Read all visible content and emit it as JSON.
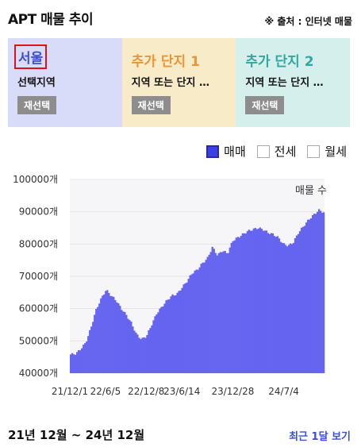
{
  "header": {
    "title": "APT 매물 추이",
    "source": "※ 출처 : 인터넷 매물"
  },
  "panels": [
    {
      "name": "서울",
      "subtitle": "선택지역",
      "button": "재선택"
    },
    {
      "name": "추가 단지 1",
      "subtitle": "지역 또는 단지 …",
      "button": "재선택"
    },
    {
      "name": "추가 단지 2",
      "subtitle": "지역 또는 단지 …",
      "button": "재선택"
    }
  ],
  "legend": [
    {
      "label": "매매",
      "checked": true
    },
    {
      "label": "전세",
      "checked": false
    },
    {
      "label": "월세",
      "checked": false
    }
  ],
  "colors": {
    "series": "#6565f0"
  },
  "chart_data": {
    "type": "area",
    "series_label": "매물 수",
    "ylim": [
      40000,
      100000
    ],
    "yticks": [
      "100000개",
      "90000개",
      "80000개",
      "70000개",
      "60000개",
      "50000개",
      "40000개"
    ],
    "xticks": [
      "21/12/1",
      "22/6/5",
      "22/12/8",
      "23/6/14",
      "23/12/28",
      "24/7/4"
    ],
    "x": [
      "21/12/1",
      "22/1/15",
      "22/2/1",
      "22/3/1",
      "22/4/1",
      "22/5/1",
      "22/5/20",
      "22/6/5",
      "22/6/20",
      "22/7/5",
      "22/8/1",
      "22/9/1",
      "22/10/1",
      "22/11/1",
      "22/11/20",
      "22/12/8",
      "23/1/1",
      "23/2/1",
      "23/3/1",
      "23/4/1",
      "23/5/1",
      "23/5/20",
      "23/6/14",
      "23/7/1",
      "23/8/1",
      "23/8/20",
      "23/9/1",
      "23/9/20",
      "23/10/10",
      "23/10/25",
      "23/11/10",
      "23/12/1",
      "23/12/28",
      "24/1/20",
      "24/2/10",
      "24/3/1",
      "24/3/20",
      "24/4/10",
      "24/5/1",
      "24/5/20",
      "24/6/5",
      "24/6/20",
      "24/7/4",
      "24/7/25",
      "24/8/15",
      "24/9/1",
      "24/9/20",
      "24/10/10",
      "24/11/1",
      "24/11/20",
      "24/12/1"
    ],
    "values": [
      45800,
      46000,
      47500,
      49500,
      54000,
      59500,
      63000,
      65800,
      64000,
      62500,
      60000,
      58000,
      55500,
      52000,
      50500,
      51500,
      55000,
      58500,
      60500,
      62500,
      64000,
      64500,
      66500,
      68500,
      71000,
      72000,
      74000,
      75500,
      79000,
      76500,
      78000,
      77000,
      81000,
      82000,
      83000,
      84000,
      84500,
      85000,
      84500,
      83500,
      83000,
      82000,
      80000,
      79500,
      80500,
      83500,
      85500,
      87500,
      89000,
      90500,
      89800
    ]
  },
  "footer": {
    "range": "21년 12월 ~ 24년 12월",
    "recent": "최근 1달 보기"
  }
}
